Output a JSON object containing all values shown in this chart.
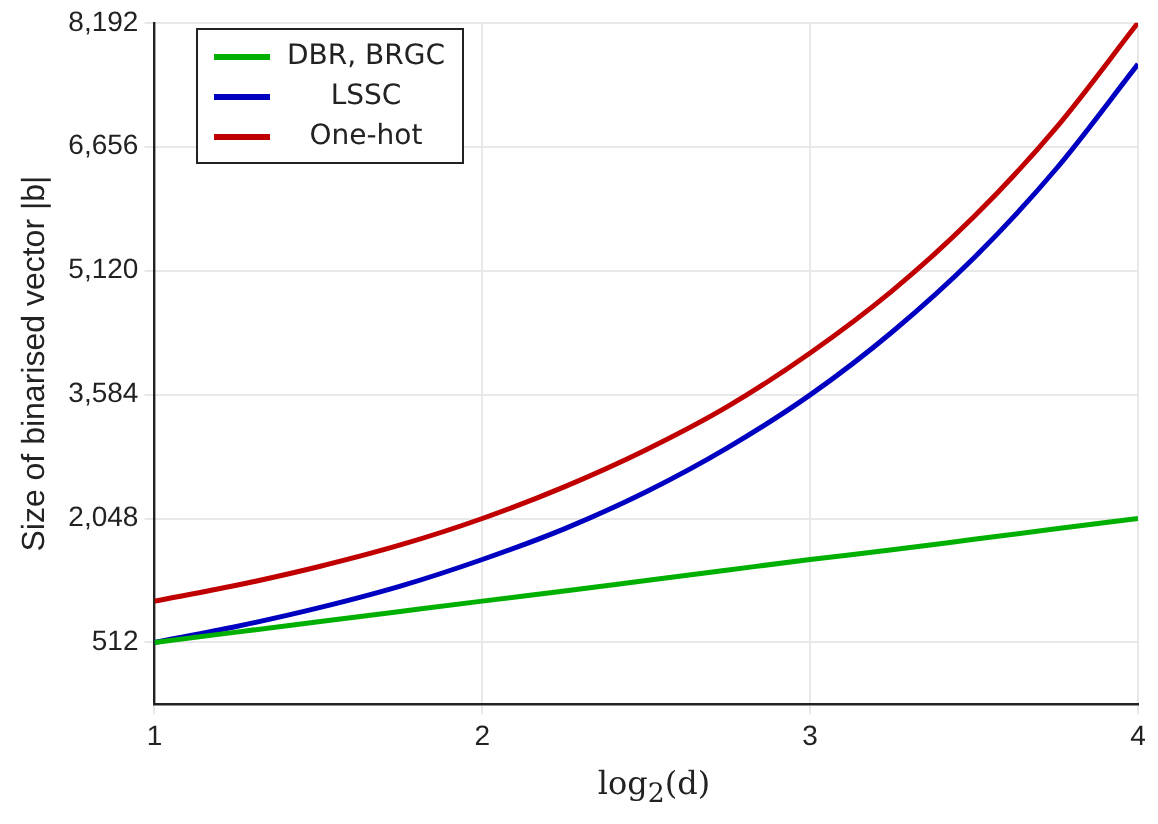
{
  "chart_data": {
    "type": "line",
    "xlabel": "log$_{2}$(d)",
    "ylabel": "Size of binarised vector |b|",
    "x": [
      1,
      1.25,
      1.5,
      1.75,
      2,
      2.25,
      2.5,
      2.75,
      3,
      3.25,
      3.5,
      3.75,
      4
    ],
    "series": [
      {
        "name": "DBR, BRGC",
        "color": "#00b000",
        "values": [
          512,
          640,
          768,
          896,
          1024,
          1150,
          1280,
          1410,
          1540,
          1660,
          1790,
          1920,
          2048
        ]
      },
      {
        "name": "LSSC",
        "color": "#0000c0",
        "values": [
          512,
          710,
          940,
          1210,
          1540,
          1920,
          2380,
          2930,
          3580,
          4360,
          5280,
          6380,
          7680
        ]
      },
      {
        "name": "One-hot",
        "color": "#c00000",
        "values": [
          1024,
          1220,
          1450,
          1720,
          2048,
          2440,
          2900,
          3440,
          4100,
          4870,
          5790,
          6890,
          8192
        ]
      }
    ],
    "xlim": [
      1,
      4
    ],
    "xticks": [
      1,
      2,
      3,
      4
    ],
    "ylim": [
      -256,
      8192
    ],
    "yticks": [
      512,
      {
        "value": 2048,
        "label": "2,048"
      },
      {
        "value": 3584,
        "label": "3,584"
      },
      {
        "value": 5120,
        "label": "5,120"
      },
      {
        "value": 6656,
        "label": "6,656"
      },
      {
        "value": 8192,
        "label": "8,192"
      }
    ],
    "grid": true,
    "legend": "top left",
    "marker": "none",
    "line_style": "solid"
  }
}
